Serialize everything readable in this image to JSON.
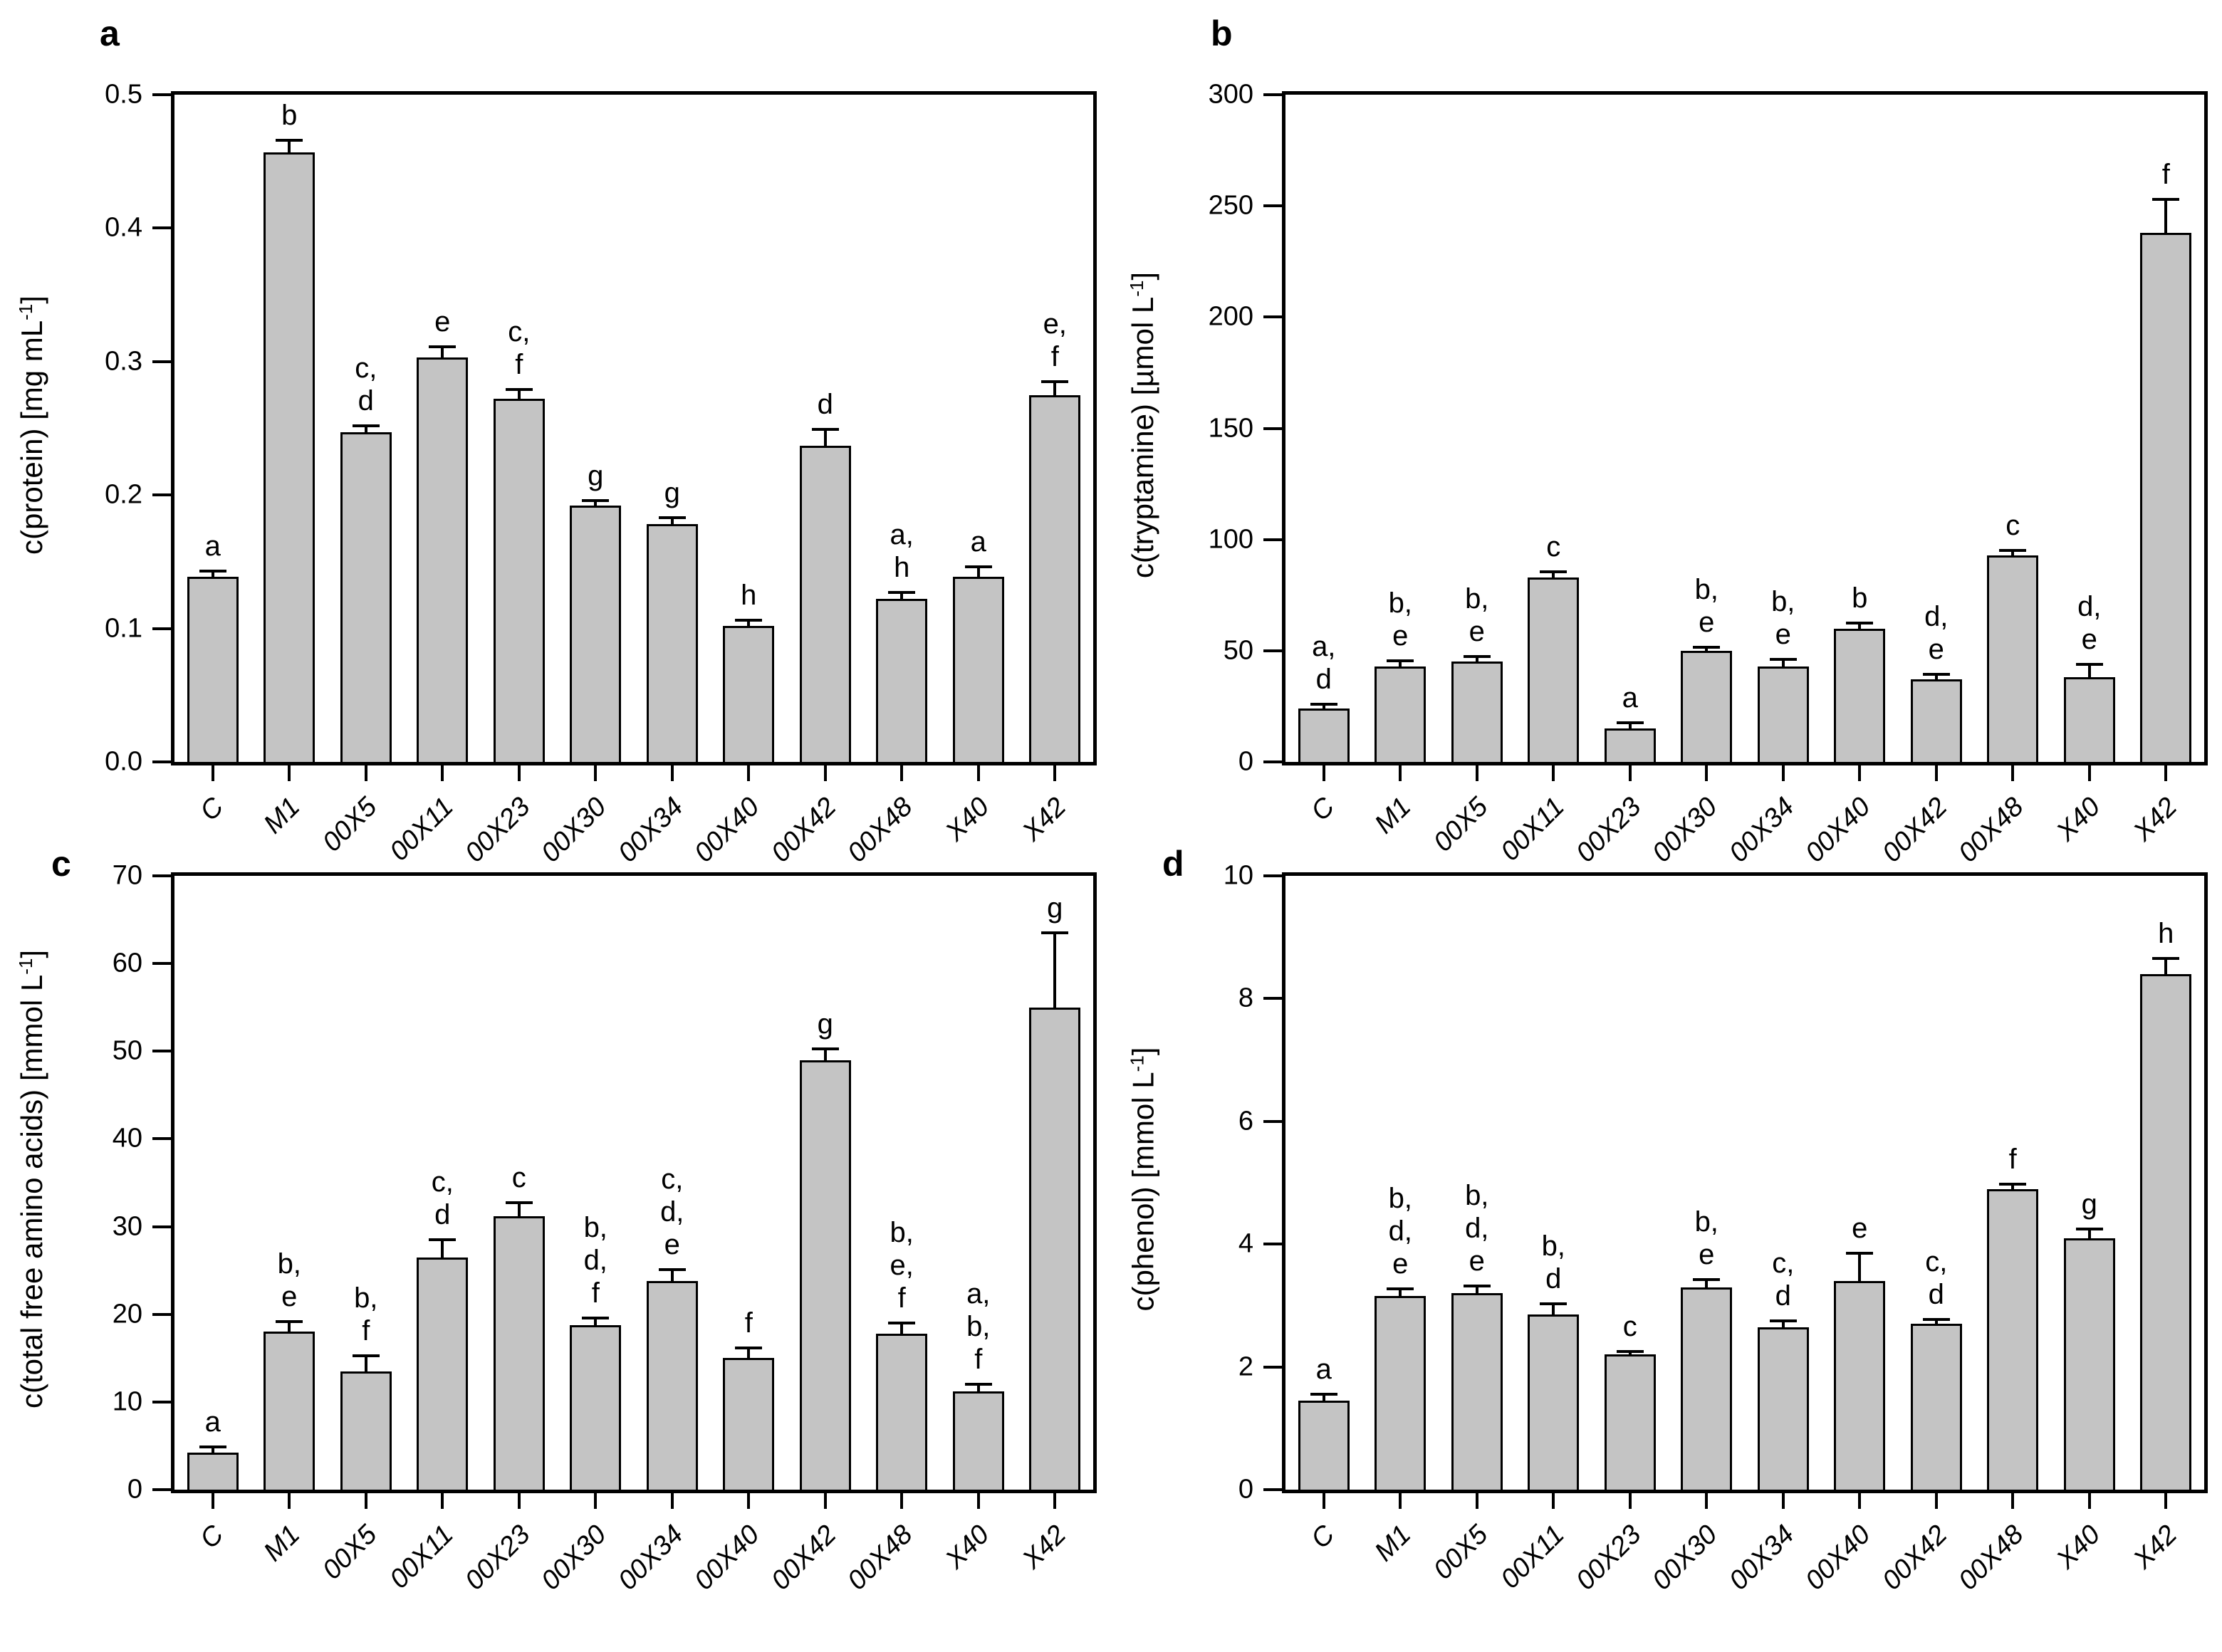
{
  "figure": {
    "background": "#ffffff",
    "bar_fill": "#c4c4c4",
    "bar_border": "#000000",
    "text_color": "#000000"
  },
  "chart_data": [
    {
      "type": "bar",
      "panel": "a",
      "ylabel_pre": "c(protein) [mg mL",
      "ylabel_sup": "-1",
      "ylabel_post": "]",
      "xlabel": "",
      "ylim": [
        0,
        0.5
      ],
      "ytick_labels": [
        "0.0",
        "0.1",
        "0.2",
        "0.3",
        "0.4",
        "0.5"
      ],
      "grid": "off",
      "legend": "none",
      "categories": [
        "C",
        "M1",
        "00X5",
        "00X11",
        "00X23",
        "00X30",
        "00X34",
        "00X40",
        "00X42",
        "00X48",
        "X40",
        "X42"
      ],
      "values": [
        0.139,
        0.457,
        0.247,
        0.303,
        0.272,
        0.192,
        0.178,
        0.102,
        0.237,
        0.122,
        0.139,
        0.275
      ],
      "errors": [
        0.004,
        0.009,
        0.005,
        0.008,
        0.007,
        0.004,
        0.005,
        0.004,
        0.012,
        0.005,
        0.007,
        0.01
      ],
      "sig_labels": [
        [
          "a"
        ],
        [
          "b"
        ],
        [
          "c,",
          "d"
        ],
        [
          "e"
        ],
        [
          "c,",
          "f"
        ],
        [
          "g"
        ],
        [
          "g"
        ],
        [
          "h"
        ],
        [
          "d"
        ],
        [
          "a,",
          "h"
        ],
        [
          "a"
        ],
        [
          "e,",
          "f"
        ]
      ]
    },
    {
      "type": "bar",
      "panel": "b",
      "ylabel_pre": "c(tryptamine) [µmol L",
      "ylabel_sup": "-1",
      "ylabel_post": "]",
      "xlabel": "",
      "ylim": [
        0,
        300
      ],
      "ytick_labels": [
        "0",
        "50",
        "100",
        "150",
        "200",
        "250",
        "300"
      ],
      "grid": "off",
      "legend": "none",
      "categories": [
        "C",
        "M1",
        "00X5",
        "00X11",
        "00X23",
        "00X30",
        "00X34",
        "00X40",
        "00X42",
        "00X48",
        "X40",
        "X42"
      ],
      "values": [
        24,
        43,
        45,
        83,
        15,
        50,
        43,
        60,
        37,
        93,
        38,
        238
      ],
      "errors": [
        2,
        2.5,
        2.5,
        2.5,
        2.5,
        1.5,
        3,
        2.5,
        2.5,
        2,
        6,
        15
      ],
      "sig_labels": [
        [
          "a,",
          "d"
        ],
        [
          "b,",
          "e"
        ],
        [
          "b,",
          "e"
        ],
        [
          "c"
        ],
        [
          "a"
        ],
        [
          "b,",
          "e"
        ],
        [
          "b,",
          "e"
        ],
        [
          "b"
        ],
        [
          "d,",
          "e"
        ],
        [
          "c"
        ],
        [
          "d,",
          "e"
        ],
        [
          "f"
        ]
      ]
    },
    {
      "type": "bar",
      "panel": "c",
      "ylabel_pre": "c(total free amino acids) [mmol L",
      "ylabel_sup": "-1",
      "ylabel_post": "]",
      "xlabel": "",
      "ylim": [
        0,
        70
      ],
      "ytick_labels": [
        "0",
        "10",
        "20",
        "30",
        "40",
        "50",
        "60",
        "70"
      ],
      "grid": "off",
      "legend": "none",
      "categories": [
        "C",
        "M1",
        "00X5",
        "00X11",
        "00X23",
        "00X30",
        "00X34",
        "00X40",
        "00X42",
        "00X48",
        "X40",
        "X42"
      ],
      "values": [
        4.2,
        18,
        13.5,
        26.5,
        31.2,
        18.8,
        23.8,
        15,
        49,
        17.8,
        11.2,
        55
      ],
      "errors": [
        0.7,
        1.2,
        1.8,
        2.0,
        1.5,
        0.8,
        1.3,
        1.2,
        1.3,
        1.2,
        0.8,
        8.5
      ],
      "sig_labels": [
        [
          "a"
        ],
        [
          "b,",
          "e"
        ],
        [
          "b,",
          "f"
        ],
        [
          "c,",
          "d"
        ],
        [
          "c"
        ],
        [
          "b,",
          "d,",
          "f"
        ],
        [
          "c,",
          "d,",
          "e"
        ],
        [
          "f"
        ],
        [
          "g"
        ],
        [
          "b,",
          "e,",
          "f"
        ],
        [
          "a,",
          "b,",
          "f"
        ],
        [
          "g"
        ]
      ]
    },
    {
      "type": "bar",
      "panel": "d",
      "ylabel_pre": "c(phenol) [mmol L",
      "ylabel_sup": "-1",
      "ylabel_post": "]",
      "xlabel": "",
      "ylim": [
        0,
        10
      ],
      "ytick_labels": [
        "0",
        "2",
        "4",
        "6",
        "8",
        "10"
      ],
      "grid": "off",
      "legend": "none",
      "categories": [
        "C",
        "M1",
        "00X5",
        "00X11",
        "00X23",
        "00X30",
        "00X34",
        "00X40",
        "00X42",
        "00X48",
        "X40",
        "X42"
      ],
      "values": [
        1.45,
        3.15,
        3.2,
        2.85,
        2.2,
        3.3,
        2.65,
        3.4,
        2.7,
        4.9,
        4.1,
        8.4
      ],
      "errors": [
        0.1,
        0.12,
        0.12,
        0.18,
        0.05,
        0.12,
        0.1,
        0.45,
        0.07,
        0.08,
        0.15,
        0.25
      ],
      "sig_labels": [
        [
          "a"
        ],
        [
          "b,",
          "d,",
          "e"
        ],
        [
          "b,",
          "d,",
          "e"
        ],
        [
          "b,",
          "d"
        ],
        [
          "c"
        ],
        [
          "b,",
          "e"
        ],
        [
          "c,",
          "d"
        ],
        [
          "e"
        ],
        [
          "c,",
          "d"
        ],
        [
          "f"
        ],
        [
          "g"
        ],
        [
          "h"
        ]
      ]
    }
  ]
}
